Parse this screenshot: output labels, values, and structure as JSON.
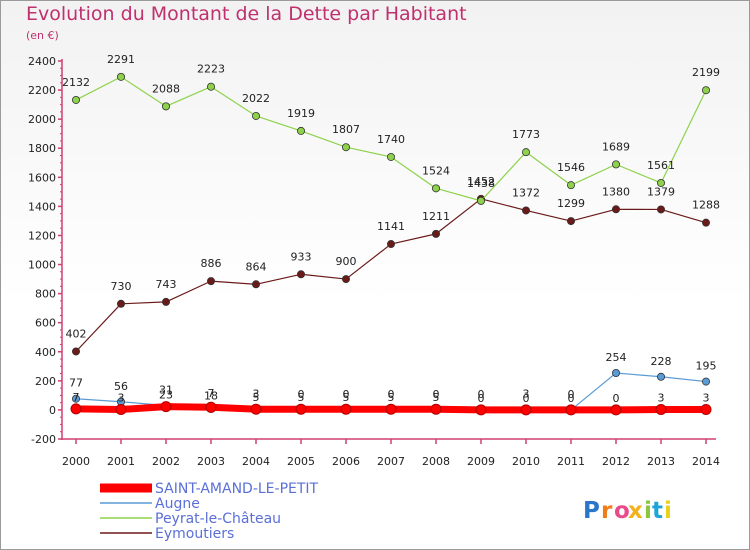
{
  "header": {
    "title": "Evolution du Montant de la Dette par Habitant",
    "subtitle": "(en €)"
  },
  "logo": {
    "text": "Proxiti",
    "colors": [
      "#2a77c9",
      "#f07d1a",
      "#e94a8a",
      "#f3b21b",
      "#8cc63f",
      "#1ea5d8",
      "#e9d21b"
    ]
  },
  "chart_data": {
    "type": "line",
    "title": "Evolution du Montant de la Dette par Habitant",
    "ylabel": "(en €)",
    "xlabel": "",
    "ylim": [
      -200,
      2400
    ],
    "yticks": [
      -200,
      0,
      200,
      400,
      600,
      800,
      1000,
      1200,
      1400,
      1600,
      1800,
      2000,
      2200,
      2400
    ],
    "grid": false,
    "legend": "bottom-left",
    "x": [
      "2000",
      "2001",
      "2002",
      "2003",
      "2004",
      "2005",
      "2006",
      "2007",
      "2008",
      "2009",
      "2010",
      "2011",
      "2012",
      "2013",
      "2014"
    ],
    "series": [
      {
        "name": "SAINT-AMAND-LE-PETIT",
        "color": "#ff0000",
        "values": [
          7,
          3,
          23,
          18,
          5,
          5,
          5,
          5,
          5,
          0,
          0,
          0,
          0,
          3,
          3
        ]
      },
      {
        "name": "Augne",
        "color": "#5b9bd5",
        "values": [
          77,
          56,
          31,
          7,
          3,
          0,
          0,
          0,
          0,
          0,
          3,
          0,
          254,
          228,
          195
        ]
      },
      {
        "name": "Peyrat-le-Château",
        "color": "#8ed24b",
        "values": [
          2132,
          2291,
          2088,
          2223,
          2022,
          1919,
          1807,
          1740,
          1524,
          1438,
          1773,
          1546,
          1689,
          1561,
          2199
        ]
      },
      {
        "name": "Eymoutiers",
        "color": "#6b1a1a",
        "values": [
          402,
          730,
          743,
          886,
          864,
          933,
          900,
          1141,
          1211,
          1452,
          1372,
          1299,
          1380,
          1379,
          1288
        ]
      }
    ]
  }
}
